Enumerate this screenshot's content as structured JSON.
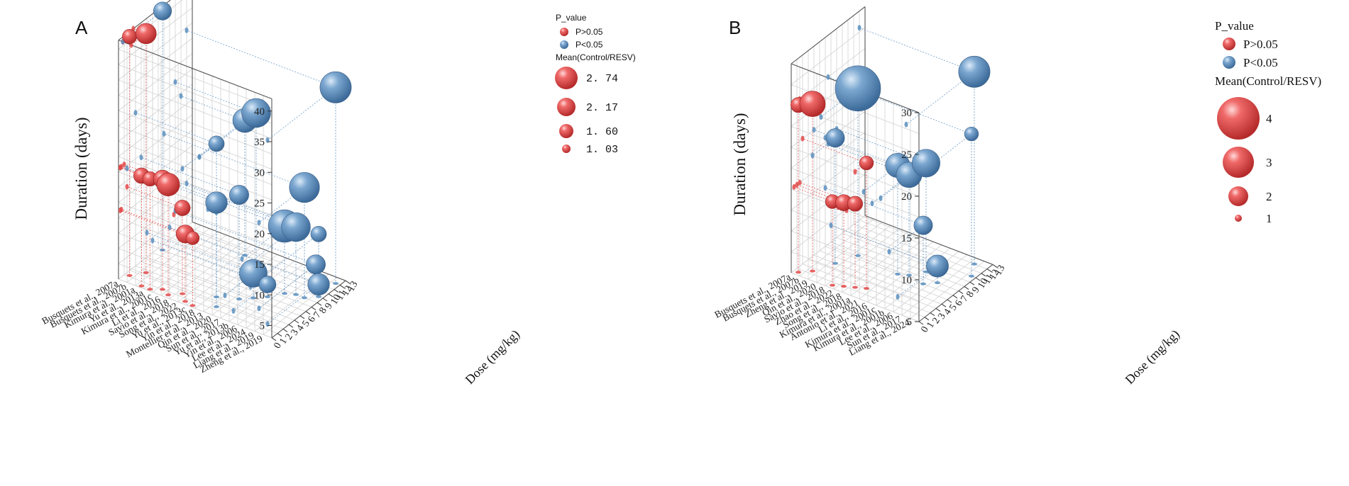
{
  "colors": {
    "red": "#e24a4a",
    "blue": "#5b8fbe",
    "grid": "#d2d2d2",
    "pink": "#e873d8"
  },
  "chart_data": [
    {
      "panel": "A",
      "type": "scatter",
      "title": "",
      "zlabel": "Duration (days)",
      "xlabel": "Dose (mg/kg)",
      "z_ticks": [
        "5",
        "10",
        "15",
        "20",
        "25",
        "30",
        "35",
        "40"
      ],
      "x_ticks": [
        "0",
        "1",
        "2",
        "3",
        "4",
        "5",
        "6",
        "7",
        "8",
        "9",
        "10",
        "11",
        "12",
        "13"
      ],
      "zlim": [
        3,
        42
      ],
      "xlim": [
        0,
        13
      ],
      "categories": [
        "Busquets et al., 2007a",
        "Busquets et al., 2007b",
        "Kimura et al., 2001a",
        "Yu et al., 2013a",
        "Kimura et al., 2001c",
        "Li et al., 2016",
        "Savio et al., 2018",
        "Song et al., 2022",
        "Yu et al., 2013c",
        "Yin et al., 2018",
        "Montellier et al., 2013",
        "Qin et al., 2020",
        "Sun et al., 2017",
        "Yu et al., 2013b",
        "Yin et al., 2006",
        "Lee et al., 2024",
        "Liang et al., 2019",
        "Zheng et al., 2019"
      ],
      "legend": {
        "p_title": "P_value",
        "p_labels": [
          "P>0.05",
          "P<0.05"
        ],
        "size_title": "Mean(Control/RESV)",
        "size_labels": [
          "2. 74",
          "2. 17",
          "1. 60",
          "1. 03"
        ],
        "size_values": [
          2.74,
          2.17,
          1.6,
          1.03
        ]
      },
      "series": [
        {
          "name": "P>0.05",
          "points": [
            {
              "category": "Busquets et al., 2007a",
              "dose": 1.2,
              "duration": 42,
              "mean": 1.2
            },
            {
              "category": "Busquets et al., 2007b",
              "dose": 2.6,
              "duration": 42,
              "mean": 1.7
            },
            {
              "category": "Kimura et al., 2001a",
              "dose": 0.3,
              "duration": 21,
              "mean": 1.3
            },
            {
              "category": "Yu et al., 2013a",
              "dose": 0.3,
              "duration": 21,
              "mean": 1.2
            },
            {
              "category": "Kimura et al., 2001c",
              "dose": 1.0,
              "duration": 21,
              "mean": 1.5
            },
            {
              "category": "Li et al., 2016",
              "dose": 0.5,
              "duration": 21,
              "mean": 1.9
            },
            {
              "category": "Savio et al., 2018",
              "dose": 1.5,
              "duration": 17,
              "mean": 1.3
            },
            {
              "category": "Song et al., 2022",
              "dose": 0.5,
              "duration": 14,
              "mean": 1.5
            },
            {
              "category": "Yu et al., 2013c",
              "dose": 0.3,
              "duration": 14,
              "mean": 1.1
            }
          ]
        },
        {
          "name": "P<0.05",
          "points": [
            {
              "category": "Yin et al., 2018",
              "dose": 3.0,
              "duration": 28,
              "mean": 1.3
            },
            {
              "category": "Montellier et al., 2013",
              "dose": 1.5,
              "duration": 20,
              "mean": 1.8
            },
            {
              "category": "Qin et al., 2020",
              "dose": 4.0,
              "duration": 20,
              "mean": 1.6
            },
            {
              "category": "Sun et al., 2017",
              "dose": 5.0,
              "duration": 7,
              "mean": 2.3
            },
            {
              "category": "Yu et al., 2013b",
              "dose": 6.0,
              "duration": 5,
              "mean": 1.4
            },
            {
              "category": "Yin et al., 2006",
              "dose": 7.5,
              "duration": 14,
              "mean": 2.7
            },
            {
              "category": "Lee et al., 2024",
              "dose": 8.0,
              "duration": 14,
              "mean": 2.4
            },
            {
              "category": "Liang et al., 2019",
              "dose": 8.0,
              "duration": 21,
              "mean": 2.5
            },
            {
              "category": "Zheng et al., 2019",
              "dose": 9.0,
              "duration": 5,
              "mean": 1.8
            },
            {
              "category": "Yin et al., 2018",
              "dose": 10.0,
              "duration": 28,
              "mean": 2.4
            },
            {
              "category": "Song et al., 2022",
              "dose": 11.0,
              "duration": 25,
              "mean": 2.0
            },
            {
              "category": "Zheng et al., 2019",
              "dose": 12.0,
              "duration": 35,
              "mean": 2.6
            },
            {
              "category": "Busquets et al., 2007a",
              "dose": 7.0,
              "duration": 42,
              "mean": 1.5
            },
            {
              "category": "Liang et al., 2019",
              "dose": 10.0,
              "duration": 7,
              "mean": 1.6
            },
            {
              "category": "Lee et al., 2024",
              "dose": 12.0,
              "duration": 10,
              "mean": 1.3
            }
          ]
        }
      ]
    },
    {
      "panel": "B",
      "type": "scatter",
      "title": "",
      "zlabel": "Duration (days)",
      "xlabel": "Dose (mg/kg)",
      "z_ticks": [
        "5",
        "10",
        "15",
        "20",
        "25",
        "30"
      ],
      "x_ticks": [
        "0",
        "1",
        "2",
        "3",
        "4",
        "5",
        "6",
        "7",
        "8",
        "9",
        "10",
        "11",
        "12",
        "13"
      ],
      "zlim": [
        5,
        30
      ],
      "xlim": [
        0,
        13
      ],
      "categories": [
        "Busquets et al., 2007a",
        "Busquets et al., 2007b",
        "Zheng et al., 2019",
        "Qin et al., 2020",
        "Savio et al., 2018",
        "Zhao et al., 2022",
        "Song et al., 2018",
        "Kimura et al., 2001a",
        "Antonio et al., 2021",
        "Li et al., 2016",
        "Kimura et al., 2001c",
        "Kimura et al., 2001b",
        "Lee et al., 2006",
        "Sun et al., 2017",
        "Liang et al., 2024"
      ],
      "legend": {
        "p_title": "P_value",
        "p_labels": [
          "P>0.05",
          "P<0.05"
        ],
        "size_title": "Mean(Control/RESV)",
        "size_labels": [
          "4",
          "3",
          "2",
          "1"
        ],
        "size_values": [
          4,
          3,
          2,
          1
        ]
      },
      "series": [
        {
          "name": "P>0.05",
          "points": [
            {
              "category": "Busquets et al., 2007a",
              "dose": 0.5,
              "duration": 25,
              "mean": 1.3
            },
            {
              "category": "Busquets et al., 2007b",
              "dose": 1.5,
              "duration": 25,
              "mean": 2.2
            },
            {
              "category": "Savio et al., 2018",
              "dose": 0.5,
              "duration": 15,
              "mean": 1.2
            },
            {
              "category": "Zhao et al., 2022",
              "dose": 1.0,
              "duration": 15,
              "mean": 1.4
            },
            {
              "category": "Song et al., 2018",
              "dose": 1.5,
              "duration": 15,
              "mean": 1.3
            },
            {
              "category": "Kimura et al., 2001a",
              "dose": 2.0,
              "duration": 20,
              "mean": 1.2
            }
          ]
        },
        {
          "name": "P<0.05",
          "points": [
            {
              "category": "Zheng et al., 2019",
              "dose": 4.0,
              "duration": 20,
              "mean": 1.6
            },
            {
              "category": "Qin et al., 2020",
              "dose": 6.5,
              "duration": 25,
              "mean": 3.9
            },
            {
              "category": "Antonio et al., 2021",
              "dose": 6.0,
              "duration": 18,
              "mean": 2.1
            },
            {
              "category": "Li et al., 2016",
              "dose": 6.5,
              "duration": 17,
              "mean": 2.2
            },
            {
              "category": "Kimura et al., 2001c",
              "dose": 8.0,
              "duration": 18,
              "mean": 2.4
            },
            {
              "category": "Kimura et al., 2001b",
              "dose": 6.0,
              "duration": 12,
              "mean": 1.6
            },
            {
              "category": "Lee et al., 2006",
              "dose": 7.0,
              "duration": 7,
              "mean": 1.9
            },
            {
              "category": "Sun et al., 2017",
              "dose": 12.0,
              "duration": 28,
              "mean": 2.7
            },
            {
              "category": "Liang et al., 2024",
              "dose": 10.0,
              "duration": 22,
              "mean": 1.2
            }
          ]
        }
      ]
    }
  ]
}
